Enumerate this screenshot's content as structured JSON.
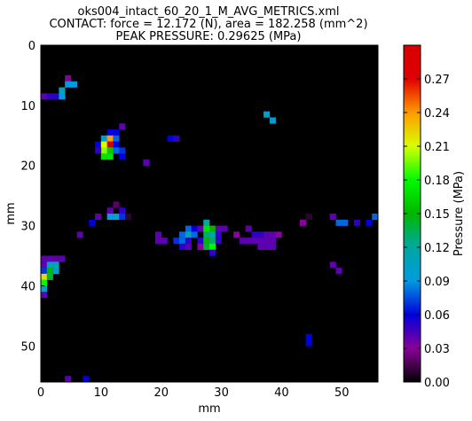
{
  "chart_data": {
    "type": "heatmap",
    "title": [
      "oks004_intact_60_20_1_M_AVG_METRICS.xml",
      "CONTACT: force = 12.172 (N), area = 182.258 (mm^2)",
      "PEAK PRESSURE: 0.29625 (MPa)"
    ],
    "xlabel": "mm",
    "ylabel": "mm",
    "xlim": [
      0,
      56
    ],
    "ylim": [
      56,
      0
    ],
    "x_ticks": [
      0,
      10,
      20,
      30,
      40,
      50
    ],
    "y_ticks": [
      0,
      10,
      20,
      30,
      40,
      50
    ],
    "colorbar": {
      "label": "Pressure (MPa)",
      "range": [
        0,
        0.3
      ],
      "ticks": [
        "0.00",
        "0.03",
        "0.06",
        "0.09",
        "0.12",
        "0.15",
        "0.18",
        "0.21",
        "0.24",
        "0.27"
      ],
      "colors": [
        "#000000",
        "#8a009a",
        "#0000dc",
        "#009ae0",
        "#00a7a0",
        "#00b700",
        "#00fa00",
        "#d8ff00",
        "#ff9a00",
        "#e00000",
        "#d40000"
      ]
    },
    "background_value": 0,
    "cells": [
      [
        4,
        5,
        0.03
      ],
      [
        5,
        6,
        0.09
      ],
      [
        4,
        6,
        0.09
      ],
      [
        3,
        7,
        0.11
      ],
      [
        0,
        8,
        0.04
      ],
      [
        1,
        8,
        0.05
      ],
      [
        2,
        8,
        0.05
      ],
      [
        3,
        8,
        0.09
      ],
      [
        37,
        11,
        0.1
      ],
      [
        38,
        12,
        0.1
      ],
      [
        13,
        13,
        0.04
      ],
      [
        11,
        14,
        0.06
      ],
      [
        12,
        14,
        0.06
      ],
      [
        10,
        15,
        0.1
      ],
      [
        11,
        15,
        0.24
      ],
      [
        12,
        15,
        0.08
      ],
      [
        21,
        15,
        0.06
      ],
      [
        22,
        15,
        0.05
      ],
      [
        9,
        16,
        0.06
      ],
      [
        10,
        16,
        0.21
      ],
      [
        11,
        16,
        0.29
      ],
      [
        12,
        16,
        0.06
      ],
      [
        10,
        17,
        0.2
      ],
      [
        11,
        17,
        0.16
      ],
      [
        12,
        17,
        0.08
      ],
      [
        13,
        17,
        0.07
      ],
      [
        9,
        17,
        0.05
      ],
      [
        10,
        18,
        0.17
      ],
      [
        11,
        18,
        0.17
      ],
      [
        13,
        18,
        0.06
      ],
      [
        17,
        19,
        0.04
      ],
      [
        12,
        26,
        0.02
      ],
      [
        11,
        27,
        0.04
      ],
      [
        13,
        27,
        0.05
      ],
      [
        9,
        28,
        0.04
      ],
      [
        11,
        28,
        0.09
      ],
      [
        12,
        28,
        0.1
      ],
      [
        13,
        28,
        0.07
      ],
      [
        14,
        28,
        0.01
      ],
      [
        8,
        29,
        0.06
      ],
      [
        44,
        28,
        0.01
      ],
      [
        48,
        28,
        0.04
      ],
      [
        55,
        28,
        0.08
      ],
      [
        43,
        29,
        0.03
      ],
      [
        49,
        29,
        0.08
      ],
      [
        50,
        29,
        0.08
      ],
      [
        52,
        29,
        0.05
      ],
      [
        54,
        29,
        0.06
      ],
      [
        27,
        29,
        0.12
      ],
      [
        24,
        30,
        0.08
      ],
      [
        25,
        30,
        0.06
      ],
      [
        26,
        30,
        0.04
      ],
      [
        27,
        30,
        0.17
      ],
      [
        28,
        30,
        0.15
      ],
      [
        29,
        30,
        0.04
      ],
      [
        30,
        30,
        0.04
      ],
      [
        34,
        30,
        0.04
      ],
      [
        6,
        31,
        0.04
      ],
      [
        19,
        31,
        0.04
      ],
      [
        23,
        31,
        0.08
      ],
      [
        24,
        31,
        0.11
      ],
      [
        25,
        31,
        0.08
      ],
      [
        27,
        31,
        0.13
      ],
      [
        28,
        31,
        0.12
      ],
      [
        29,
        31,
        0.05
      ],
      [
        32,
        31,
        0.03
      ],
      [
        35,
        31,
        0.05
      ],
      [
        36,
        31,
        0.05
      ],
      [
        37,
        31,
        0.04
      ],
      [
        38,
        31,
        0.04
      ],
      [
        39,
        31,
        0.03
      ],
      [
        19,
        32,
        0.04
      ],
      [
        20,
        32,
        0.04
      ],
      [
        22,
        32,
        0.07
      ],
      [
        23,
        32,
        0.08
      ],
      [
        24,
        32,
        0.05
      ],
      [
        26,
        32,
        0.05
      ],
      [
        27,
        32,
        0.15
      ],
      [
        28,
        32,
        0.13
      ],
      [
        29,
        32,
        0.05
      ],
      [
        33,
        32,
        0.04
      ],
      [
        34,
        32,
        0.04
      ],
      [
        35,
        32,
        0.04
      ],
      [
        36,
        32,
        0.04
      ],
      [
        37,
        32,
        0.04
      ],
      [
        38,
        32,
        0.04
      ],
      [
        23,
        33,
        0.05
      ],
      [
        24,
        33,
        0.04
      ],
      [
        26,
        33,
        0.03
      ],
      [
        27,
        33,
        0.14
      ],
      [
        28,
        33,
        0.18
      ],
      [
        36,
        33,
        0.04
      ],
      [
        37,
        33,
        0.04
      ],
      [
        38,
        33,
        0.04
      ],
      [
        28,
        34,
        0.05
      ],
      [
        0,
        35,
        0.04
      ],
      [
        1,
        35,
        0.04
      ],
      [
        2,
        35,
        0.04
      ],
      [
        3,
        35,
        0.04
      ],
      [
        0,
        36,
        0.04
      ],
      [
        1,
        36,
        0.1
      ],
      [
        2,
        36,
        0.11
      ],
      [
        0,
        37,
        0.07
      ],
      [
        1,
        37,
        0.15
      ],
      [
        2,
        37,
        0.1
      ],
      [
        0,
        38,
        0.22
      ],
      [
        1,
        38,
        0.14
      ],
      [
        0,
        39,
        0.18
      ],
      [
        48,
        36,
        0.04
      ],
      [
        49,
        37,
        0.04
      ],
      [
        0,
        40,
        0.1
      ],
      [
        0,
        41,
        0.04
      ],
      [
        44,
        48,
        0.06
      ],
      [
        44,
        49,
        0.06
      ],
      [
        4,
        55,
        0.04
      ],
      [
        7,
        55,
        0.06
      ]
    ]
  }
}
